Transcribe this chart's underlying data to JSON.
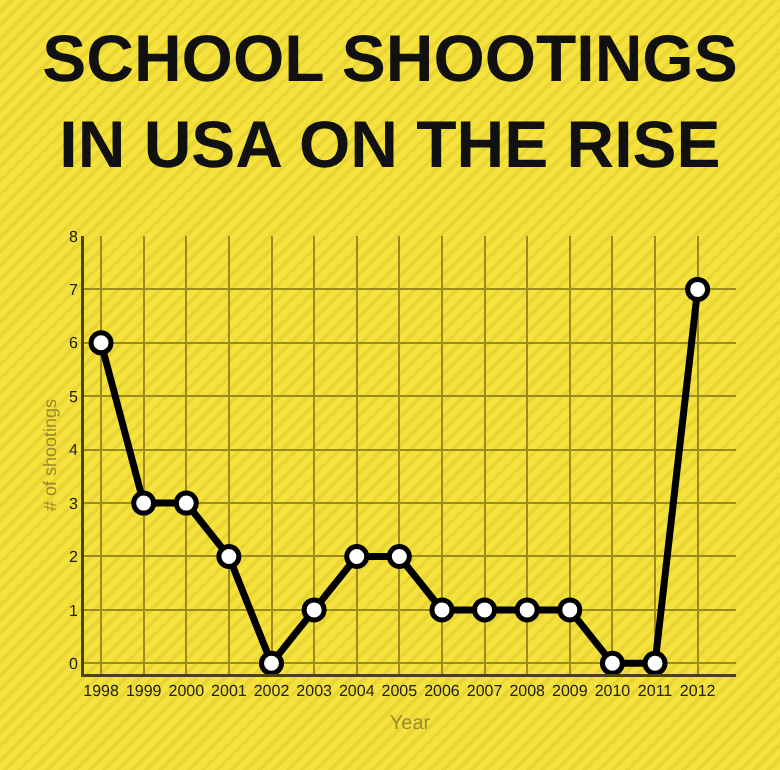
{
  "chart_data": {
    "type": "line",
    "title": "SCHOOL SHOOTINGS\nIN USA ON THE RISE",
    "xlabel": "Year",
    "ylabel": "# of shootings",
    "x": [
      1998,
      1999,
      2000,
      2001,
      2002,
      2003,
      2004,
      2005,
      2006,
      2007,
      2008,
      2009,
      2010,
      2011,
      2012
    ],
    "series": [
      {
        "color": "#000000",
        "values": [
          6,
          3,
          3,
          2,
          0,
          1,
          2,
          2,
          1,
          1,
          1,
          1,
          0,
          0,
          7
        ]
      }
    ],
    "xlim": [
      1997.6,
      2012.9
    ],
    "xticks": [
      1998,
      1999,
      2000,
      2001,
      2002,
      2003,
      2004,
      2005,
      2006,
      2007,
      2008,
      2009,
      2010,
      2011,
      2012
    ],
    "ylim": [
      -0.2,
      8
    ],
    "yticks": [
      0,
      1,
      2,
      3,
      4,
      5,
      6,
      7,
      8
    ],
    "grid": true,
    "legend": false,
    "marker": "circle",
    "line_style": "solid"
  }
}
